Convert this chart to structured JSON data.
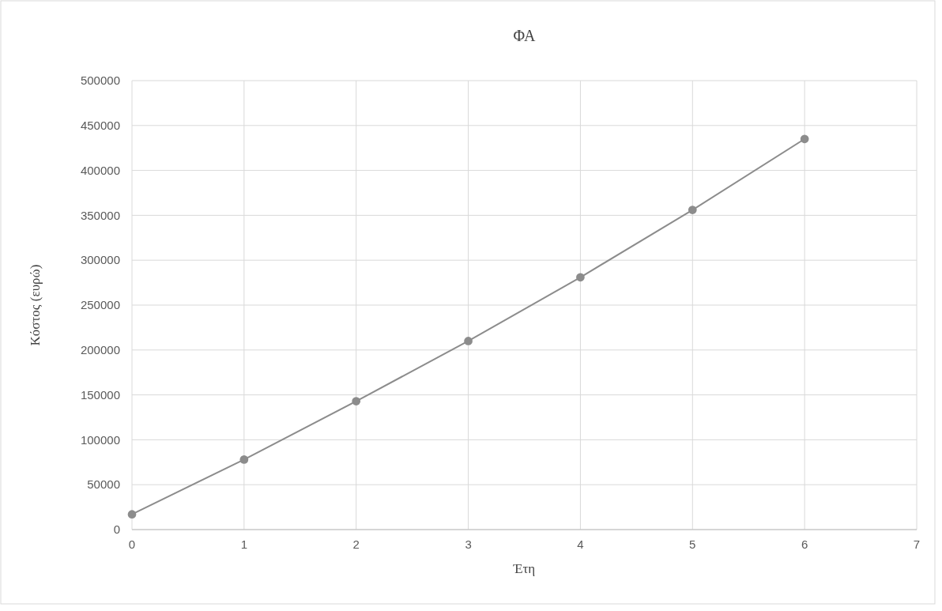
{
  "chart_data": {
    "type": "line",
    "title": "ΦΑ",
    "xlabel": "Έτη",
    "ylabel": "Κόστος (ευρώ)",
    "x": [
      0,
      1,
      2,
      3,
      4,
      5,
      6
    ],
    "series": [
      {
        "color": "#8c8c8c",
        "values": [
          17000,
          78000,
          143000,
          210000,
          281000,
          356000,
          435000
        ]
      }
    ],
    "xlim": [
      0,
      7
    ],
    "xticks": [
      0,
      1,
      2,
      3,
      4,
      5,
      6,
      7
    ],
    "ylim": [
      0,
      500000
    ],
    "yticks": [
      0,
      50000,
      100000,
      150000,
      200000,
      250000,
      300000,
      350000,
      400000,
      450000,
      500000
    ],
    "grid": true,
    "marker": "circle",
    "line_style": "solid"
  }
}
